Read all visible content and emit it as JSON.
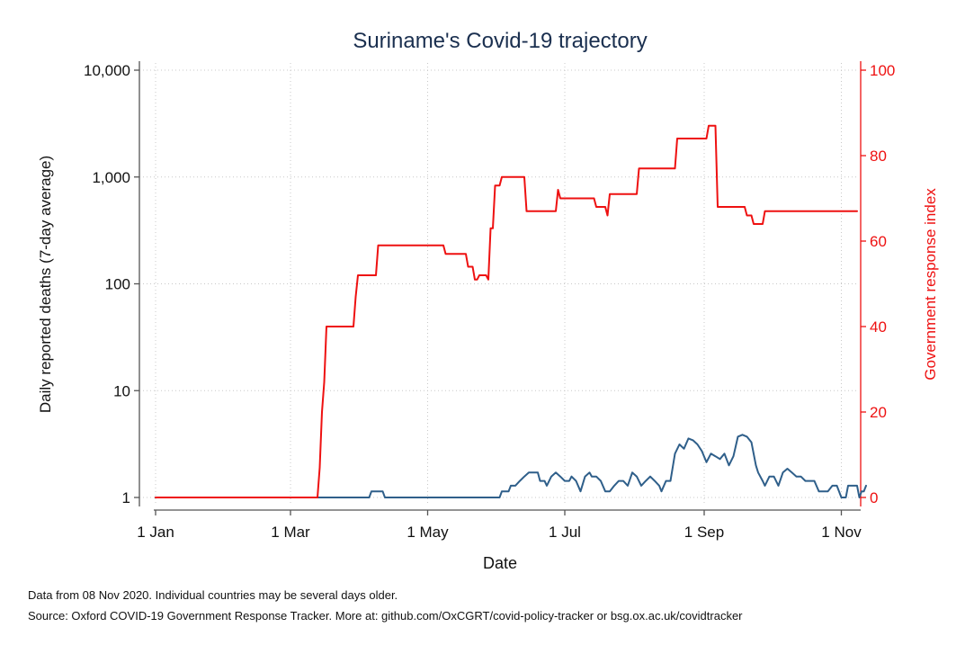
{
  "chart_data": {
    "type": "line",
    "title": "Suriname's Covid-19 trajectory",
    "xlabel": "Date",
    "ylabel_left": "Daily reported deaths (7-day average)",
    "ylabel_right": "Government response index",
    "x_ticks": [
      {
        "date": "2020-01-01",
        "label": "1 Jan"
      },
      {
        "date": "2020-03-01",
        "label": "1 Mar"
      },
      {
        "date": "2020-05-01",
        "label": "1 May"
      },
      {
        "date": "2020-07-01",
        "label": "1 Jul"
      },
      {
        "date": "2020-09-01",
        "label": "1 Sep"
      },
      {
        "date": "2020-11-01",
        "label": "1 Nov"
      }
    ],
    "xlim": [
      "2020-01-01",
      "2020-11-08"
    ],
    "y_left": {
      "scale": "log",
      "ylim": [
        1,
        10000
      ],
      "ticks": [
        {
          "value": 1,
          "label": "1"
        },
        {
          "value": 10,
          "label": "10"
        },
        {
          "value": 100,
          "label": "100"
        },
        {
          "value": 1000,
          "label": "1,000"
        },
        {
          "value": 10000,
          "label": "10,000"
        }
      ]
    },
    "y_right": {
      "scale": "linear",
      "ylim": [
        0,
        100
      ],
      "ticks": [
        {
          "value": 0,
          "label": "0"
        },
        {
          "value": 20,
          "label": "20"
        },
        {
          "value": 40,
          "label": "40"
        },
        {
          "value": 60,
          "label": "60"
        },
        {
          "value": 80,
          "label": "80"
        },
        {
          "value": 100,
          "label": "100"
        }
      ]
    },
    "grid": true,
    "legend": "none",
    "series": [
      {
        "axis": "left",
        "color": "#2f5f8a",
        "points": [
          [
            "2020-01-01",
            1
          ],
          [
            "2020-03-14",
            1
          ],
          [
            "2020-04-05",
            1
          ],
          [
            "2020-04-06",
            1.14
          ],
          [
            "2020-04-11",
            1.14
          ],
          [
            "2020-04-12",
            1
          ],
          [
            "2020-05-20",
            1
          ],
          [
            "2020-06-02",
            1
          ],
          [
            "2020-06-03",
            1.14
          ],
          [
            "2020-06-06",
            1.14
          ],
          [
            "2020-06-07",
            1.29
          ],
          [
            "2020-06-09",
            1.29
          ],
          [
            "2020-06-11",
            1.43
          ],
          [
            "2020-06-13",
            1.57
          ],
          [
            "2020-06-15",
            1.71
          ],
          [
            "2020-06-19",
            1.71
          ],
          [
            "2020-06-20",
            1.43
          ],
          [
            "2020-06-22",
            1.43
          ],
          [
            "2020-06-23",
            1.29
          ],
          [
            "2020-06-25",
            1.57
          ],
          [
            "2020-06-27",
            1.71
          ],
          [
            "2020-06-29",
            1.57
          ],
          [
            "2020-07-01",
            1.43
          ],
          [
            "2020-07-03",
            1.43
          ],
          [
            "2020-07-04",
            1.57
          ],
          [
            "2020-07-06",
            1.43
          ],
          [
            "2020-07-08",
            1.14
          ],
          [
            "2020-07-10",
            1.57
          ],
          [
            "2020-07-12",
            1.71
          ],
          [
            "2020-07-13",
            1.57
          ],
          [
            "2020-07-15",
            1.57
          ],
          [
            "2020-07-17",
            1.43
          ],
          [
            "2020-07-19",
            1.14
          ],
          [
            "2020-07-21",
            1.14
          ],
          [
            "2020-07-23",
            1.29
          ],
          [
            "2020-07-25",
            1.43
          ],
          [
            "2020-07-27",
            1.43
          ],
          [
            "2020-07-29",
            1.29
          ],
          [
            "2020-07-31",
            1.71
          ],
          [
            "2020-08-02",
            1.57
          ],
          [
            "2020-08-04",
            1.29
          ],
          [
            "2020-08-06",
            1.43
          ],
          [
            "2020-08-08",
            1.57
          ],
          [
            "2020-08-10",
            1.43
          ],
          [
            "2020-08-12",
            1.29
          ],
          [
            "2020-08-13",
            1.14
          ],
          [
            "2020-08-15",
            1.43
          ],
          [
            "2020-08-17",
            1.43
          ],
          [
            "2020-08-19",
            2.57
          ],
          [
            "2020-08-21",
            3.14
          ],
          [
            "2020-08-23",
            2.86
          ],
          [
            "2020-08-25",
            3.57
          ],
          [
            "2020-08-27",
            3.43
          ],
          [
            "2020-08-29",
            3.14
          ],
          [
            "2020-08-31",
            2.71
          ],
          [
            "2020-09-02",
            2.14
          ],
          [
            "2020-09-04",
            2.57
          ],
          [
            "2020-09-06",
            2.43
          ],
          [
            "2020-09-08",
            2.29
          ],
          [
            "2020-09-10",
            2.57
          ],
          [
            "2020-09-12",
            2.0
          ],
          [
            "2020-09-14",
            2.43
          ],
          [
            "2020-09-16",
            3.71
          ],
          [
            "2020-09-18",
            3.86
          ],
          [
            "2020-09-20",
            3.71
          ],
          [
            "2020-09-22",
            3.29
          ],
          [
            "2020-09-24",
            2.0
          ],
          [
            "2020-09-25",
            1.71
          ],
          [
            "2020-09-27",
            1.43
          ],
          [
            "2020-09-28",
            1.29
          ],
          [
            "2020-09-30",
            1.57
          ],
          [
            "2020-10-02",
            1.57
          ],
          [
            "2020-10-04",
            1.29
          ],
          [
            "2020-10-06",
            1.71
          ],
          [
            "2020-10-08",
            1.86
          ],
          [
            "2020-10-10",
            1.71
          ],
          [
            "2020-10-12",
            1.57
          ],
          [
            "2020-10-14",
            1.57
          ],
          [
            "2020-10-16",
            1.43
          ],
          [
            "2020-10-18",
            1.43
          ],
          [
            "2020-10-20",
            1.43
          ],
          [
            "2020-10-22",
            1.14
          ],
          [
            "2020-10-24",
            1.14
          ],
          [
            "2020-10-26",
            1.14
          ],
          [
            "2020-10-28",
            1.29
          ],
          [
            "2020-10-30",
            1.29
          ],
          [
            "2020-11-01",
            1.0
          ],
          [
            "2020-11-03",
            1.0
          ],
          [
            "2020-11-04",
            1.29
          ],
          [
            "2020-11-06",
            1.29
          ],
          [
            "2020-11-08",
            1.29
          ],
          [
            "2020-11-09",
            1.0
          ],
          [
            "2020-11-10",
            1.14
          ],
          [
            "2020-11-11",
            1.14
          ],
          [
            "2020-11-12",
            1.29
          ]
        ]
      },
      {
        "axis": "right",
        "color": "#ee1111",
        "points": [
          [
            "2020-01-01",
            0
          ],
          [
            "2020-03-13",
            0
          ],
          [
            "2020-03-14",
            7
          ],
          [
            "2020-03-15",
            20
          ],
          [
            "2020-03-16",
            27
          ],
          [
            "2020-03-17",
            40
          ],
          [
            "2020-03-29",
            40
          ],
          [
            "2020-03-30",
            47
          ],
          [
            "2020-03-31",
            52
          ],
          [
            "2020-04-08",
            52
          ],
          [
            "2020-04-09",
            59
          ],
          [
            "2020-05-08",
            59
          ],
          [
            "2020-05-09",
            57
          ],
          [
            "2020-05-18",
            57
          ],
          [
            "2020-05-19",
            54
          ],
          [
            "2020-05-21",
            54
          ],
          [
            "2020-05-22",
            51
          ],
          [
            "2020-05-23",
            51
          ],
          [
            "2020-05-24",
            52
          ],
          [
            "2020-05-27",
            52
          ],
          [
            "2020-05-28",
            51
          ],
          [
            "2020-05-29",
            63
          ],
          [
            "2020-05-30",
            63
          ],
          [
            "2020-05-31",
            73
          ],
          [
            "2020-06-02",
            73
          ],
          [
            "2020-06-03",
            75
          ],
          [
            "2020-06-13",
            75
          ],
          [
            "2020-06-14",
            67
          ],
          [
            "2020-06-27",
            67
          ],
          [
            "2020-06-28",
            72
          ],
          [
            "2020-06-29",
            70
          ],
          [
            "2020-07-14",
            70
          ],
          [
            "2020-07-15",
            68
          ],
          [
            "2020-07-19",
            68
          ],
          [
            "2020-07-20",
            66
          ],
          [
            "2020-07-21",
            71
          ],
          [
            "2020-08-02",
            71
          ],
          [
            "2020-08-03",
            77
          ],
          [
            "2020-08-19",
            77
          ],
          [
            "2020-08-20",
            84
          ],
          [
            "2020-09-02",
            84
          ],
          [
            "2020-09-03",
            87
          ],
          [
            "2020-09-06",
            87
          ],
          [
            "2020-09-07",
            68
          ],
          [
            "2020-09-19",
            68
          ],
          [
            "2020-09-20",
            66
          ],
          [
            "2020-09-22",
            66
          ],
          [
            "2020-09-23",
            64
          ],
          [
            "2020-09-27",
            64
          ],
          [
            "2020-09-28",
            67
          ],
          [
            "2020-11-08",
            67
          ]
        ]
      }
    ]
  },
  "footer": {
    "note1": "Data from 08 Nov 2020. Individual countries may be several days older.",
    "note2": "Source: Oxford COVID-19 Government Response Tracker. More at: github.com/OxCGRT/covid-policy-tracker or bsg.ox.ac.uk/covidtracker"
  }
}
